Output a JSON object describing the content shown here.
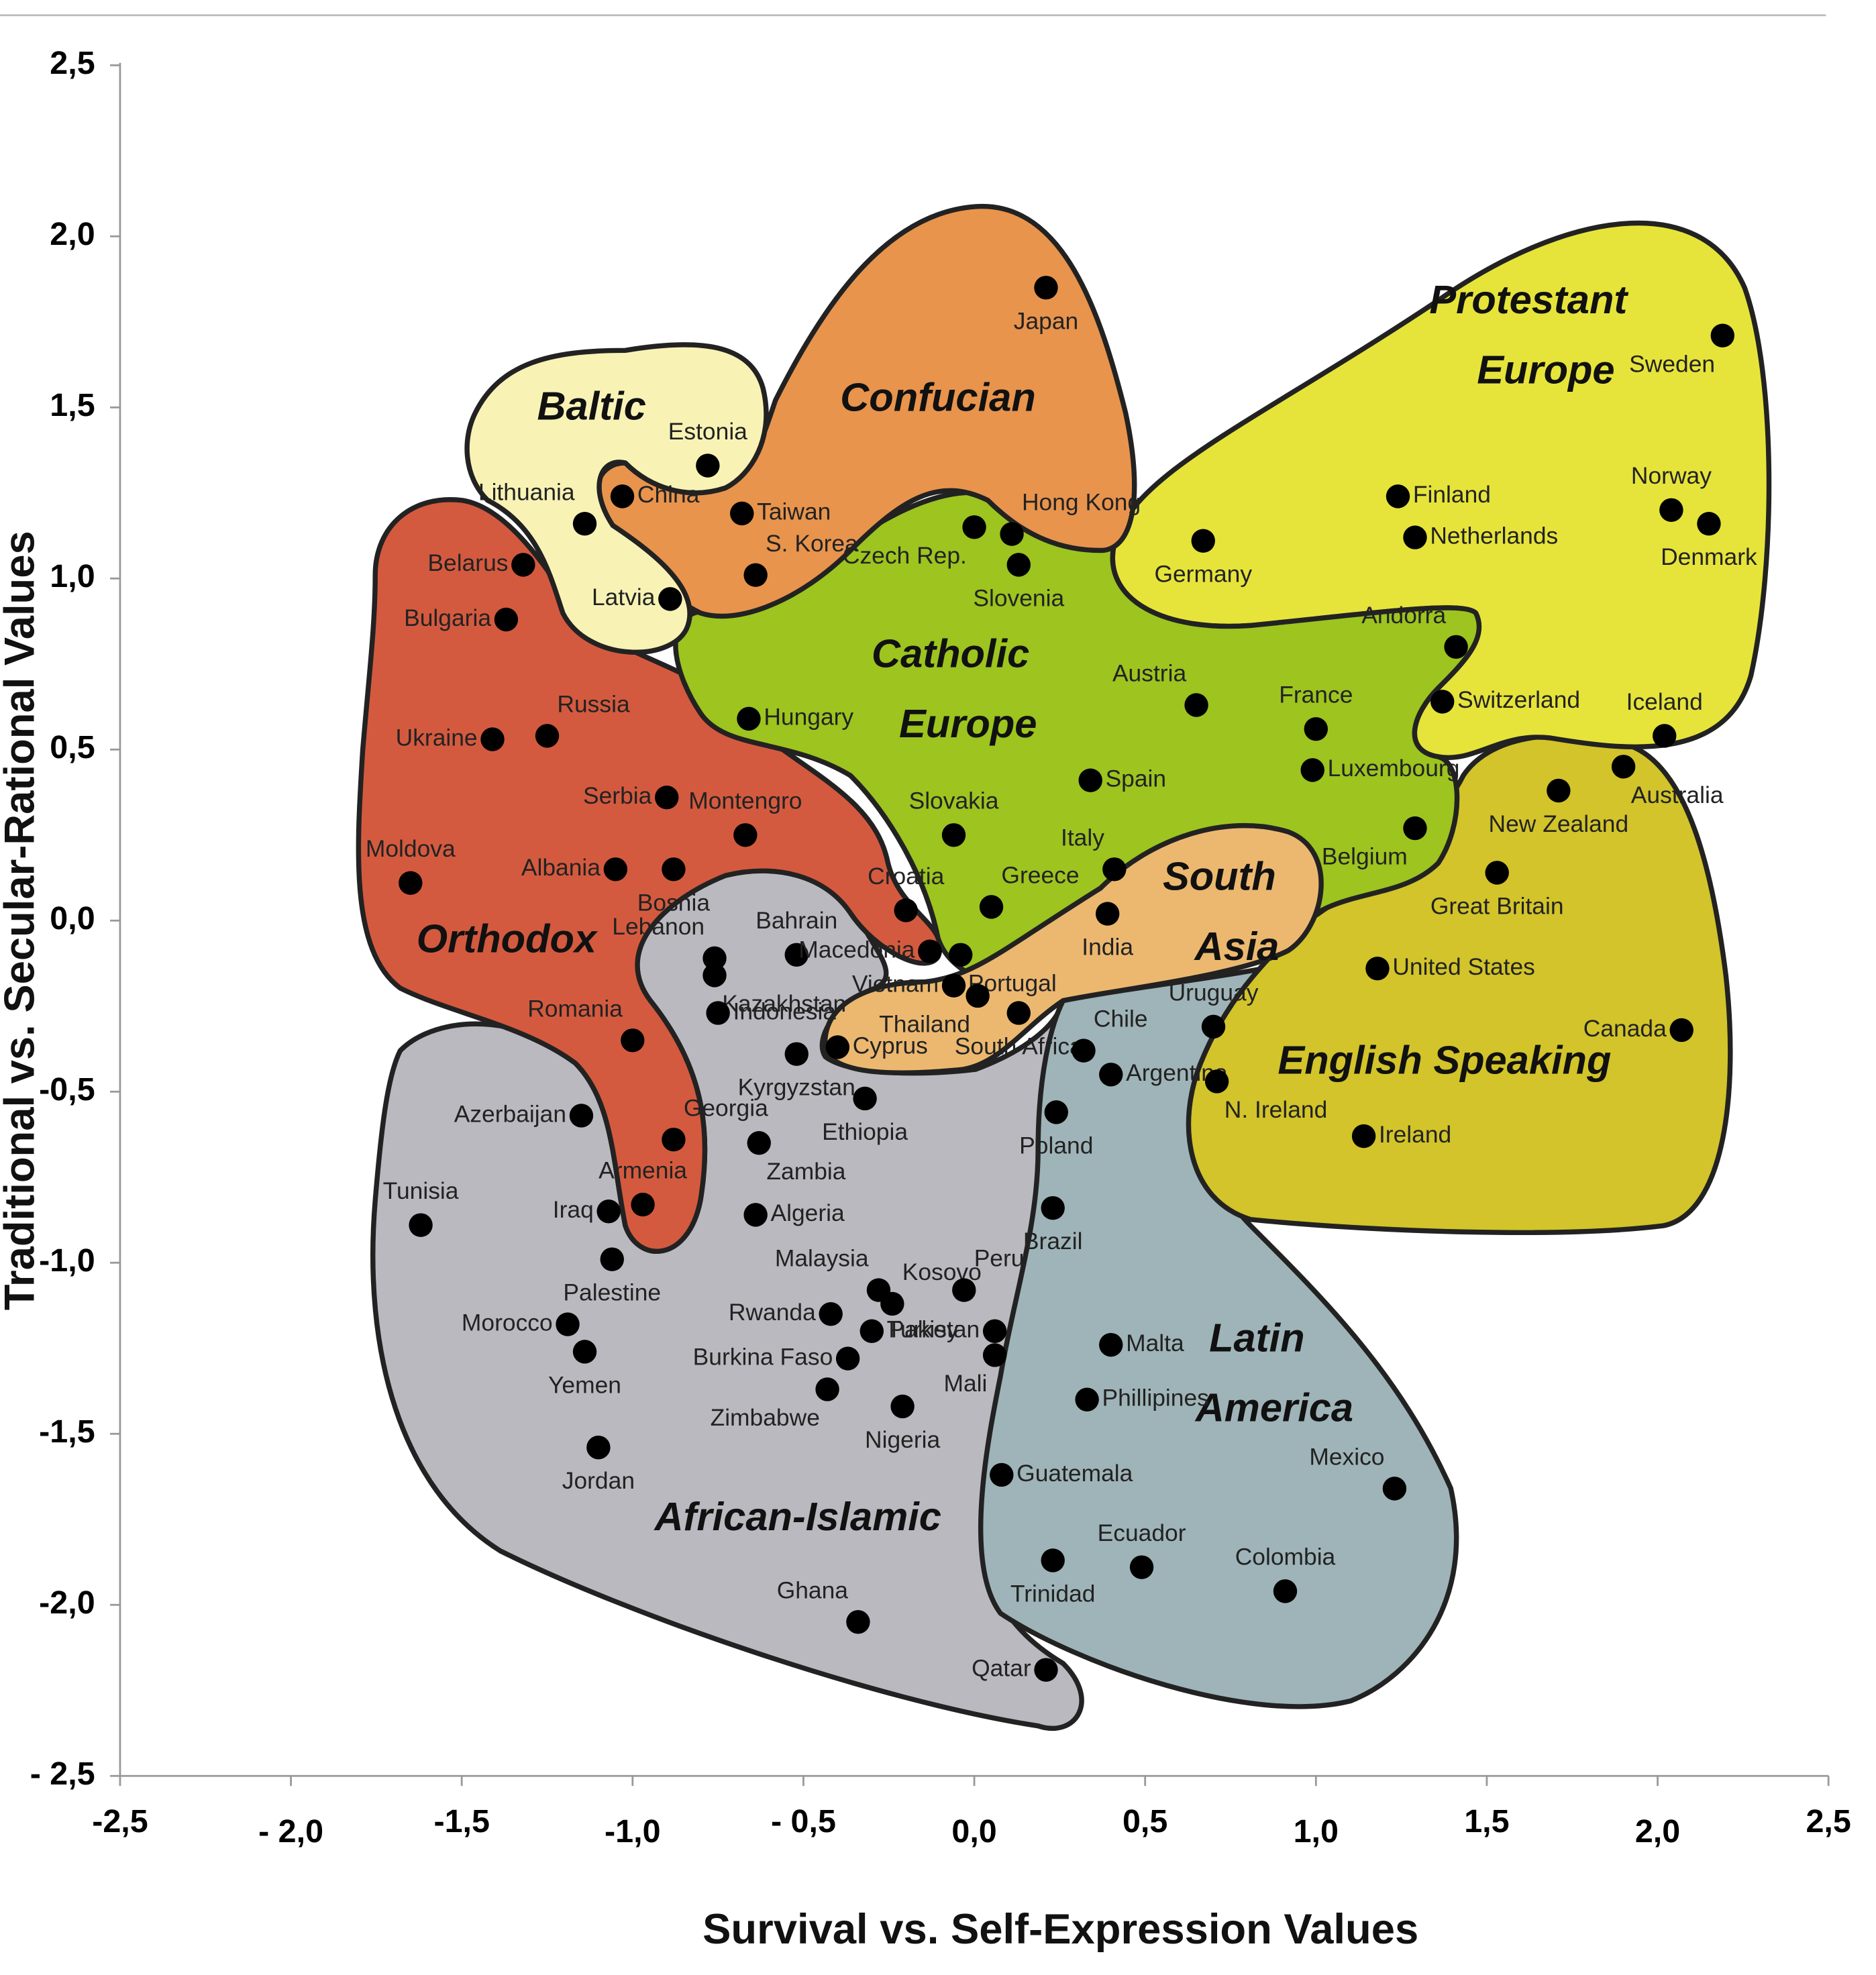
{
  "chart_data": {
    "type": "scatter",
    "xlabel": "Survival vs. Self-Expression Values",
    "ylabel": "Traditional vs. Secular-Rational Values",
    "xlim": [
      -2.5,
      2.5
    ],
    "ylim": [
      -2.5,
      2.5
    ],
    "xticks": [
      {
        "value": -2.5,
        "label": "-2,5"
      },
      {
        "value": -2,
        "label": "- 2,0"
      },
      {
        "value": -1.5,
        "label": "-1,5"
      },
      {
        "value": -1,
        "label": "-1,0"
      },
      {
        "value": -0.5,
        "label": "- 0,5"
      },
      {
        "value": 0,
        "label": "0,0"
      },
      {
        "value": 0.5,
        "label": "0,5"
      },
      {
        "value": 1,
        "label": "1,0"
      },
      {
        "value": 1.5,
        "label": "1,5"
      },
      {
        "value": 2,
        "label": "2,0"
      },
      {
        "value": 2.5,
        "label": "2,5"
      }
    ],
    "yticks": [
      {
        "value": 2.5,
        "label": "2,5"
      },
      {
        "value": 2,
        "label": "2,0"
      },
      {
        "value": 1.5,
        "label": "1,5"
      },
      {
        "value": 1,
        "label": "1,0"
      },
      {
        "value": 0.5,
        "label": "0,5"
      },
      {
        "value": 0,
        "label": "0,0"
      },
      {
        "value": -0.5,
        "label": "-0,5"
      },
      {
        "value": -1,
        "label": "-1,0"
      },
      {
        "value": -1.5,
        "label": "-1,5"
      },
      {
        "value": -2,
        "label": "-2,0"
      },
      {
        "value": -2.5,
        "label": "- 2,5"
      }
    ],
    "color": "#000000",
    "labels": [
      "Japan",
      "Sweden",
      "Estonia",
      "China",
      "Taiwan",
      "Lithuania",
      "Hong Kong",
      "Czech Rep.",
      "S. Korea",
      "Slovenia",
      "Belarus",
      "Latvia",
      "Bulgaria",
      "Germany",
      "Finland",
      "Netherlands",
      "Norway",
      "Denmark",
      "Andorra",
      "Switzerland",
      "Iceland",
      "Hungary",
      "Austria",
      "France",
      "Ukraine",
      "Russia",
      "Luxembourg",
      "Australia",
      "Spain",
      "New Zealand",
      "Serbia",
      "Montengro",
      "Slovakia",
      "Belgium",
      "Moldova",
      "Albania",
      "Bosnia",
      "Italy",
      "Great Britain",
      "Croatia",
      "Greece",
      "India",
      "Lebanon",
      "Bahrain",
      "Macedonia",
      "Portugal",
      "Kazakhstan",
      "United States",
      "Vietnam",
      "Thailand",
      "Indonesia",
      "South Africa",
      "Uruguay",
      "Canada",
      "Cyprus",
      "Kyrgyzstan",
      "Romania",
      "Chile",
      "Ethiopia",
      "Argentina",
      "N. Ireland",
      "Azerbaijan",
      "Poland",
      "Georgia",
      "Zambia",
      "Ireland",
      "Armenia",
      "Brazil",
      "Algeria",
      "Iraq",
      "Tunisia",
      "Palestine",
      "Malaysia",
      "Kosovo",
      "Peru",
      "Rwanda",
      "Turkey",
      "Pakistan",
      "Morocco",
      "Mali",
      "Yemen",
      "Malta",
      "Burkina Faso",
      "Phillipines",
      "Nigeria",
      "Zimbabwe",
      "Jordan",
      "Guatemala",
      "Mexico",
      "Trinidad",
      "Ecuador",
      "Colombia",
      "Ghana",
      "Qatar"
    ],
    "x": [
      0.21,
      2.19,
      -0.78,
      -1.03,
      -0.68,
      -1.14,
      0.11,
      0.0,
      -0.64,
      0.13,
      -1.32,
      -0.89,
      -1.37,
      0.67,
      1.24,
      1.29,
      2.04,
      2.15,
      1.41,
      1.37,
      2.02,
      -0.66,
      0.65,
      1.0,
      -1.41,
      -1.25,
      0.99,
      1.9,
      0.34,
      1.71,
      -0.9,
      -0.67,
      -0.06,
      1.29,
      -1.65,
      -1.05,
      -0.88,
      0.41,
      1.53,
      -0.2,
      0.05,
      0.39,
      -0.76,
      -0.52,
      -0.13,
      -0.04,
      -0.76,
      1.18,
      -0.06,
      0.01,
      -0.75,
      0.13,
      0.7,
      2.07,
      -0.4,
      -0.52,
      -1.0,
      0.32,
      -0.32,
      0.4,
      0.71,
      -1.15,
      0.24,
      -0.88,
      -0.63,
      1.14,
      -0.97,
      0.23,
      -0.64,
      -1.07,
      -1.62,
      -1.06,
      -0.28,
      -0.24,
      -0.03,
      -0.42,
      -0.3,
      0.06,
      -1.19,
      0.06,
      -1.14,
      0.4,
      -0.37,
      0.33,
      -0.21,
      -0.43,
      -1.1,
      0.08,
      1.23,
      0.23,
      0.49,
      0.91,
      -0.34,
      0.21
    ],
    "values": [
      1.85,
      1.71,
      1.33,
      1.24,
      1.19,
      1.16,
      1.13,
      1.15,
      1.01,
      1.04,
      1.04,
      0.94,
      0.88,
      1.11,
      1.24,
      1.12,
      1.2,
      1.16,
      0.8,
      0.64,
      0.54,
      0.59,
      0.63,
      0.56,
      0.53,
      0.54,
      0.44,
      0.45,
      0.41,
      0.38,
      0.36,
      0.25,
      0.25,
      0.27,
      0.11,
      0.15,
      0.15,
      0.15,
      0.14,
      0.03,
      0.04,
      0.02,
      -0.11,
      -0.1,
      -0.09,
      -0.1,
      -0.16,
      -0.14,
      -0.19,
      -0.22,
      -0.27,
      -0.27,
      -0.31,
      -0.32,
      -0.37,
      -0.39,
      -0.35,
      -0.38,
      -0.52,
      -0.45,
      -0.47,
      -0.57,
      -0.56,
      -0.64,
      -0.65,
      -0.63,
      -0.83,
      -0.84,
      -0.86,
      -0.85,
      -0.89,
      -0.99,
      -1.08,
      -1.12,
      -1.08,
      -1.15,
      -1.2,
      -1.2,
      -1.18,
      -1.27,
      -1.26,
      -1.24,
      -1.28,
      -1.4,
      -1.42,
      -1.37,
      -1.54,
      -1.62,
      -1.66,
      -1.87,
      -1.89,
      -1.96,
      -2.05,
      -2.19
    ],
    "zones": [
      {
        "lines": [
          "African-Islamic"
        ],
        "color": "#bbb9c0"
      },
      {
        "lines": [
          "Latin",
          "America"
        ],
        "color": "#9fb4b8"
      },
      {
        "lines": [
          "English Speaking"
        ],
        "color": "#d2c42a"
      },
      {
        "lines": [
          "Protestant",
          "Europe"
        ],
        "color": "#e6e43a"
      },
      {
        "lines": [
          "Orthodox"
        ],
        "color": "#d45a3f"
      },
      {
        "lines": [
          "Catholic",
          "Europe"
        ],
        "color": "#9dc41f"
      },
      {
        "lines": [
          "Confucian"
        ],
        "color": "#e8944d"
      },
      {
        "lines": [
          "Baltic"
        ],
        "color": "#f8f3b5"
      },
      {
        "lines": [
          "South",
          "Asia"
        ],
        "color": "#ecb870"
      }
    ]
  }
}
